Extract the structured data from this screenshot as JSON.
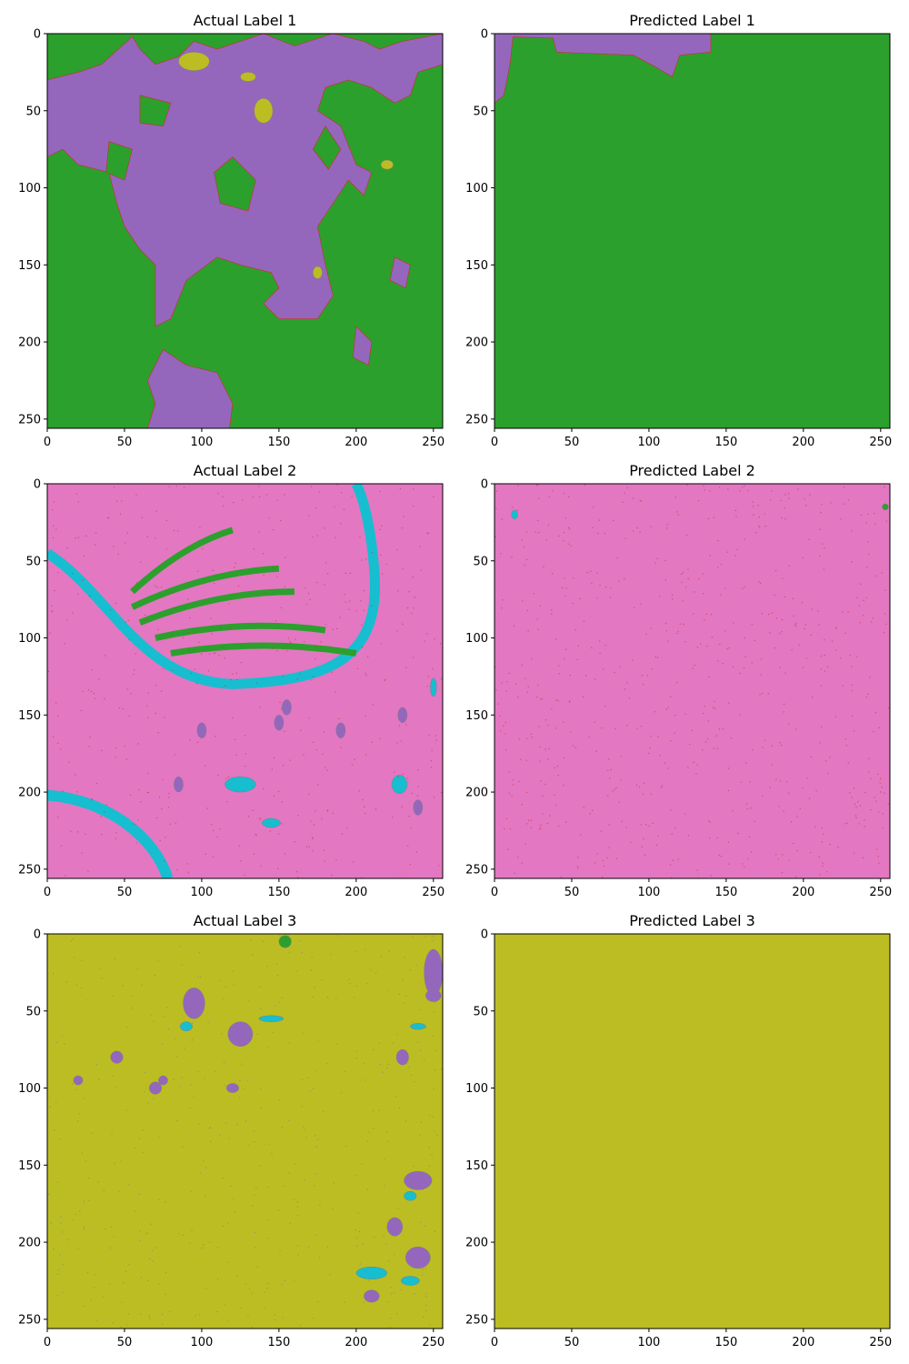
{
  "chart_data": [
    {
      "type": "heatmap",
      "title": "Actual Label 1",
      "xlim": [
        0,
        256
      ],
      "ylim": [
        256,
        0
      ],
      "xticks": [
        0,
        50,
        100,
        150,
        200,
        250
      ],
      "yticks": [
        0,
        50,
        100,
        150,
        200,
        250
      ],
      "base_class_color": "#2ca02c",
      "region_colors": [
        "#9467bd",
        "#bcbd22",
        "#d62728"
      ],
      "regions": [
        {
          "color": "#9467bd",
          "points": [
            [
              0,
              45
            ],
            [
              30,
              28
            ],
            [
              60,
              8
            ],
            [
              90,
              2
            ],
            [
              100,
              15
            ],
            [
              140,
              0
            ],
            [
              160,
              5
            ],
            [
              185,
              0
            ],
            [
              200,
              10
            ],
            [
              210,
              25
            ],
            [
              232,
              30
            ],
            [
              240,
              20
            ],
            [
              256,
              25
            ],
            [
              256,
              0
            ],
            [
              200,
              0
            ],
            [
              230,
              10
            ],
            [
              256,
              8
            ]
          ]
        },
        {
          "color": "#9467bd",
          "points": [
            [
              35,
              30
            ],
            [
              70,
              25
            ],
            [
              95,
              20
            ],
            [
              130,
              22
            ],
            [
              155,
              35
            ],
            [
              185,
              40
            ],
            [
              200,
              50
            ],
            [
              215,
              60
            ],
            [
              230,
              70
            ],
            [
              245,
              62
            ],
            [
              256,
              45
            ],
            [
              256,
              0
            ],
            [
              232,
              0
            ],
            [
              225,
              18
            ],
            [
              200,
              25
            ],
            [
              170,
              15
            ],
            [
              150,
              20
            ],
            [
              125,
              15
            ],
            [
              98,
              28
            ],
            [
              70,
              35
            ]
          ]
        }
      ]
    },
    {
      "type": "heatmap",
      "title": "Predicted Label 1",
      "xlim": [
        0,
        256
      ],
      "ylim": [
        256,
        0
      ],
      "xticks": [
        0,
        50,
        100,
        150,
        200,
        250
      ],
      "yticks": [
        0,
        50,
        100,
        150,
        200,
        250
      ],
      "base_class_color": "#2ca02c"
    },
    {
      "type": "heatmap",
      "title": "Actual Label 2",
      "xlim": [
        0,
        256
      ],
      "ylim": [
        256,
        0
      ],
      "xticks": [
        0,
        50,
        100,
        150,
        200,
        250
      ],
      "yticks": [
        0,
        50,
        100,
        150,
        200,
        250
      ],
      "base_class_color": "#e377c2"
    },
    {
      "type": "heatmap",
      "title": "Predicted Label 2",
      "xlim": [
        0,
        256
      ],
      "ylim": [
        256,
        0
      ],
      "xticks": [
        0,
        50,
        100,
        150,
        200,
        250
      ],
      "yticks": [
        0,
        50,
        100,
        150,
        200,
        250
      ],
      "base_class_color": "#e377c2"
    },
    {
      "type": "heatmap",
      "title": "Actual Label 3",
      "xlim": [
        0,
        256
      ],
      "ylim": [
        256,
        0
      ],
      "xticks": [
        0,
        50,
        100,
        150,
        200,
        250
      ],
      "yticks": [
        0,
        50,
        100,
        150,
        200,
        250
      ],
      "base_class_color": "#bcbd22"
    },
    {
      "type": "heatmap",
      "title": "Predicted Label 3",
      "xlim": [
        0,
        256
      ],
      "ylim": [
        256,
        0
      ],
      "xticks": [
        0,
        50,
        100,
        150,
        200,
        250
      ],
      "yticks": [
        0,
        50,
        100,
        150,
        200,
        250
      ],
      "base_class_color": "#bcbd22"
    }
  ]
}
